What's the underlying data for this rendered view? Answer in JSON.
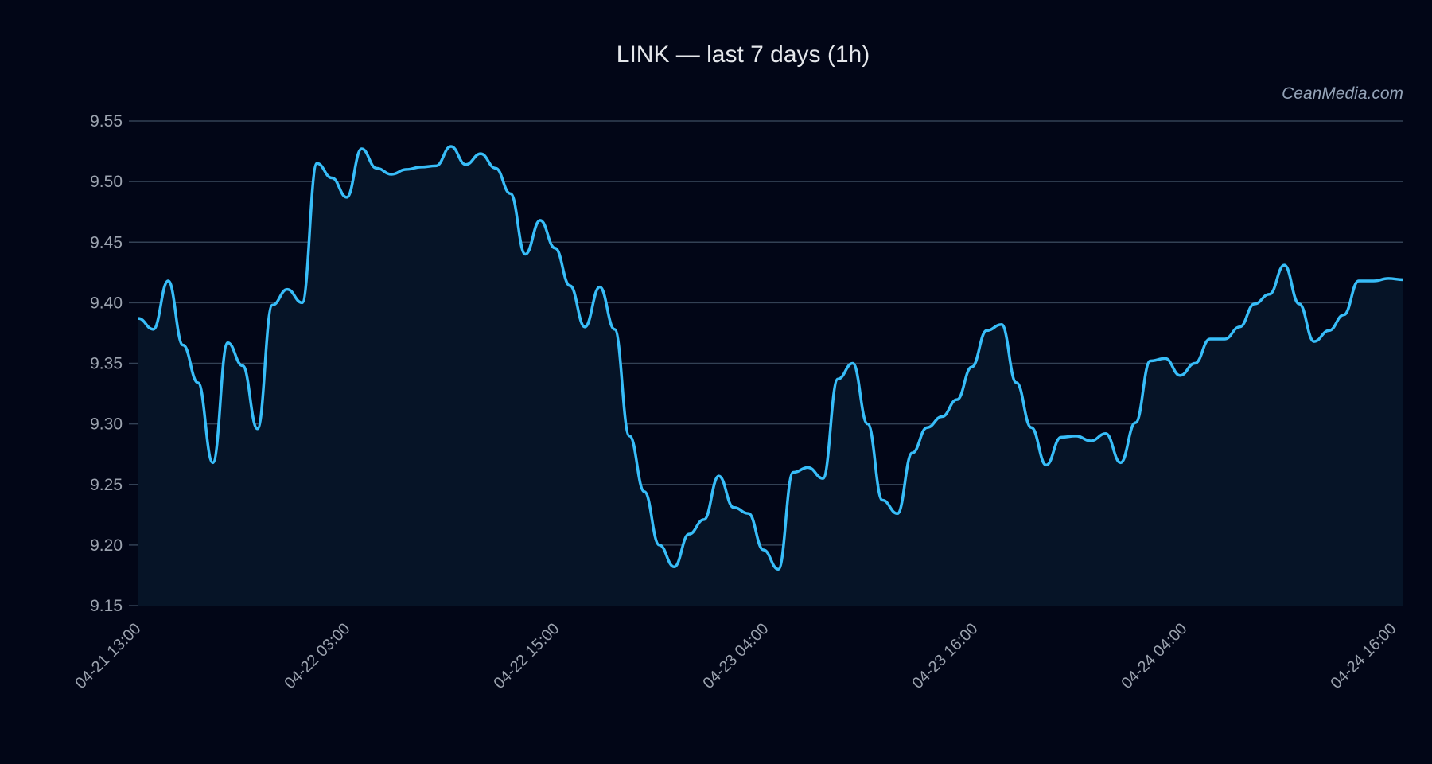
{
  "title": "LINK — last 7 days (1h)",
  "watermark": "CeanMedia.com",
  "colors": {
    "background": "#020617",
    "plot_fill": "#061427",
    "line": "#38bdf8",
    "grid": "#334155",
    "tick_text": "#9ca3af"
  },
  "chart_data": {
    "type": "line",
    "title": "LINK — last 7 days (1h)",
    "xlabel": "",
    "ylabel": "",
    "ylim": [
      9.15,
      9.55
    ],
    "yticks": [
      9.15,
      9.2,
      9.25,
      9.3,
      9.35,
      9.4,
      9.45,
      9.5,
      9.55
    ],
    "ytick_labels": [
      "9.15",
      "9.20",
      "9.25",
      "9.30",
      "9.35",
      "9.40",
      "9.45",
      "9.50",
      "9.55"
    ],
    "xtick_labels": [
      "04-21 13:00",
      "04-22 03:00",
      "04-22 15:00",
      "04-23 04:00",
      "04-23 16:00",
      "04-24 04:00",
      "04-24 16:00"
    ],
    "xtick_index": [
      0,
      12.5,
      25,
      37.5,
      50,
      62.5,
      75
    ],
    "grid": true,
    "legend": null,
    "fill_under_line": true,
    "series": [
      {
        "name": "LINK",
        "values": [
          9.387,
          9.378,
          9.418,
          9.365,
          9.334,
          9.268,
          9.367,
          9.348,
          9.296,
          9.398,
          9.411,
          9.4,
          9.515,
          9.503,
          9.487,
          9.527,
          9.511,
          9.506,
          9.51,
          9.512,
          9.513,
          9.529,
          9.514,
          9.523,
          9.511,
          9.49,
          9.44,
          9.468,
          9.445,
          9.414,
          9.38,
          9.413,
          9.378,
          9.29,
          9.244,
          9.2,
          9.182,
          9.209,
          9.221,
          9.257,
          9.231,
          9.226,
          9.196,
          9.18,
          9.26,
          9.264,
          9.255,
          9.337,
          9.35,
          9.3,
          9.237,
          9.226,
          9.276,
          9.297,
          9.306,
          9.32,
          9.347,
          9.377,
          9.382,
          9.334,
          9.297,
          9.266,
          9.289,
          9.29,
          9.286,
          9.292,
          9.268,
          9.301,
          9.352,
          9.354,
          9.34,
          9.35,
          9.37,
          9.37,
          9.38,
          9.399,
          9.407,
          9.431,
          9.399,
          9.368,
          9.377,
          9.39,
          9.418,
          9.418,
          9.42,
          9.419
        ]
      }
    ]
  }
}
